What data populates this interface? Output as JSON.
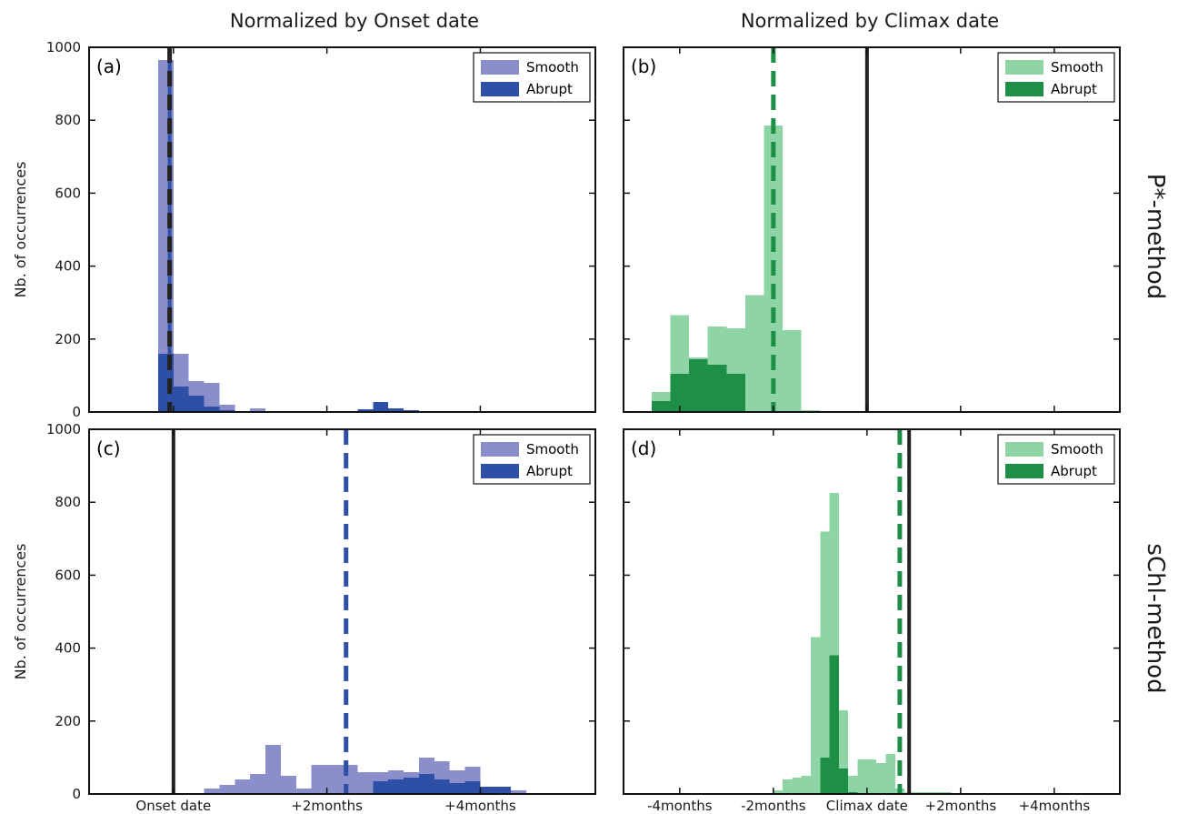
{
  "figure": {
    "col_titles": [
      "Normalized by Onset date",
      "Normalized by Climax date"
    ],
    "row_titles": [
      "P*-method",
      "sChl-method"
    ]
  },
  "chart_data": [
    {
      "type": "bar",
      "panel_label": "(a)",
      "ylabel": "Nb. of occurrences",
      "ylim": [
        0,
        1000
      ],
      "yticks": [
        0,
        200,
        400,
        600,
        800,
        1000
      ],
      "xlim": [
        -1.1,
        5.5
      ],
      "xticks": [
        {
          "value": 0,
          "label": ""
        },
        {
          "value": 2,
          "label": ""
        },
        {
          "value": 4,
          "label": ""
        }
      ],
      "show_yticklabels": true,
      "bin_width": 0.2,
      "legend": "top-right",
      "colors": {
        "Smooth": "#8a8fcc",
        "Abrupt": "#2e4fa6"
      },
      "series": [
        {
          "name": "Smooth",
          "x": [
            -0.2,
            0.0,
            0.2,
            0.4,
            0.6,
            1.0,
            2.6,
            2.8,
            3.0
          ],
          "values": [
            965,
            160,
            85,
            80,
            20,
            10,
            5,
            5,
            5
          ]
        },
        {
          "name": "Abrupt",
          "x": [
            -0.2,
            0.0,
            0.2,
            0.4,
            0.6,
            2.4,
            2.6,
            2.8,
            3.0
          ],
          "values": [
            160,
            70,
            45,
            15,
            5,
            8,
            28,
            10,
            5
          ]
        }
      ],
      "vlines": [
        {
          "x": -0.05,
          "style": "solid",
          "color": "#2e4fa6"
        },
        {
          "x": -0.05,
          "style": "dashed",
          "color": "#222222"
        }
      ]
    },
    {
      "type": "bar",
      "panel_label": "(b)",
      "ylabel": "",
      "ylim": [
        0,
        1000
      ],
      "yticks": [
        0,
        200,
        400,
        600,
        800,
        1000
      ],
      "xlim": [
        -5.2,
        5.4
      ],
      "xticks": [
        {
          "value": -4,
          "label": ""
        },
        {
          "value": -2,
          "label": ""
        },
        {
          "value": 0,
          "label": ""
        },
        {
          "value": 2,
          "label": ""
        },
        {
          "value": 4,
          "label": ""
        }
      ],
      "show_yticklabels": false,
      "bin_width": 0.4,
      "legend": "top-right",
      "colors": {
        "Smooth": "#8fd4a4",
        "Abrupt": "#1e8f46"
      },
      "series": [
        {
          "name": "Smooth",
          "x": [
            -4.6,
            -4.2,
            -3.8,
            -3.4,
            -3.0,
            -2.6,
            -2.2,
            -1.8,
            -1.4
          ],
          "values": [
            55,
            265,
            150,
            235,
            230,
            320,
            785,
            225,
            5
          ]
        },
        {
          "name": "Abrupt",
          "x": [
            -4.6,
            -4.2,
            -3.8,
            -3.4,
            -3.0
          ],
          "values": [
            30,
            105,
            145,
            130,
            105
          ]
        }
      ],
      "vlines": [
        {
          "x": 0.0,
          "style": "solid",
          "color": "#222222"
        },
        {
          "x": -2.0,
          "style": "dashed",
          "color": "#1e8f46"
        }
      ]
    },
    {
      "type": "bar",
      "panel_label": "(c)",
      "ylabel": "Nb. of occurrences",
      "ylim": [
        0,
        1000
      ],
      "yticks": [
        0,
        200,
        400,
        600,
        800,
        1000
      ],
      "xlim": [
        -1.1,
        5.5
      ],
      "xticks": [
        {
          "value": 0,
          "label": "Onset date"
        },
        {
          "value": 2,
          "label": "+2months"
        },
        {
          "value": 4,
          "label": "+4months"
        }
      ],
      "show_yticklabels": true,
      "bin_width": 0.2,
      "legend": "top-right",
      "colors": {
        "Smooth": "#8a8fcc",
        "Abrupt": "#2e4fa6"
      },
      "series": [
        {
          "name": "Smooth",
          "x": [
            0.4,
            0.6,
            0.8,
            1.0,
            1.2,
            1.4,
            1.6,
            1.8,
            2.0,
            2.2,
            2.4,
            2.6,
            2.8,
            3.0,
            3.2,
            3.4,
            3.6,
            3.8,
            4.0,
            4.2,
            4.4
          ],
          "values": [
            15,
            25,
            40,
            55,
            135,
            50,
            15,
            80,
            80,
            80,
            60,
            60,
            65,
            60,
            100,
            90,
            65,
            75,
            15,
            15,
            10
          ]
        },
        {
          "name": "Abrupt",
          "x": [
            2.6,
            2.8,
            3.0,
            3.2,
            3.4,
            3.6,
            3.8,
            4.0,
            4.2
          ],
          "values": [
            35,
            40,
            45,
            55,
            40,
            30,
            35,
            20,
            20
          ]
        }
      ],
      "vlines": [
        {
          "x": 0.0,
          "style": "solid",
          "color": "#222222"
        },
        {
          "x": 2.25,
          "style": "dashed",
          "color": "#2e4fa6"
        }
      ]
    },
    {
      "type": "bar",
      "panel_label": "(d)",
      "ylabel": "",
      "ylim": [
        0,
        1000
      ],
      "yticks": [
        0,
        200,
        400,
        600,
        800,
        1000
      ],
      "xlim": [
        -5.2,
        5.4
      ],
      "xticks": [
        {
          "value": -4,
          "label": "-4months"
        },
        {
          "value": -2,
          "label": "-2months"
        },
        {
          "value": 0,
          "label": "Climax date"
        },
        {
          "value": 2,
          "label": "+2months"
        },
        {
          "value": 4,
          "label": "+4months"
        }
      ],
      "show_yticklabels": false,
      "bin_width": 0.2,
      "legend": "top-right",
      "colors": {
        "Smooth": "#8fd4a4",
        "Abrupt": "#1e8f46"
      },
      "series": [
        {
          "name": "Smooth",
          "x": [
            -2.0,
            -1.8,
            -1.6,
            -1.4,
            -1.2,
            -1.0,
            -0.8,
            -0.6,
            -0.4,
            -0.2,
            0.0,
            0.2,
            0.4,
            0.6,
            0.8,
            1.0,
            1.2,
            1.4,
            1.6
          ],
          "values": [
            10,
            40,
            45,
            50,
            430,
            720,
            825,
            230,
            50,
            95,
            95,
            85,
            110,
            15,
            5,
            5,
            5,
            5,
            5
          ]
        },
        {
          "name": "Abrupt",
          "x": [
            -1.0,
            -0.8,
            -0.6,
            -0.4
          ],
          "values": [
            100,
            380,
            70,
            5
          ]
        }
      ],
      "vlines": [
        {
          "x": 0.9,
          "style": "solid",
          "color": "#222222"
        },
        {
          "x": 0.7,
          "style": "dashed",
          "color": "#1e8f46"
        }
      ]
    }
  ]
}
